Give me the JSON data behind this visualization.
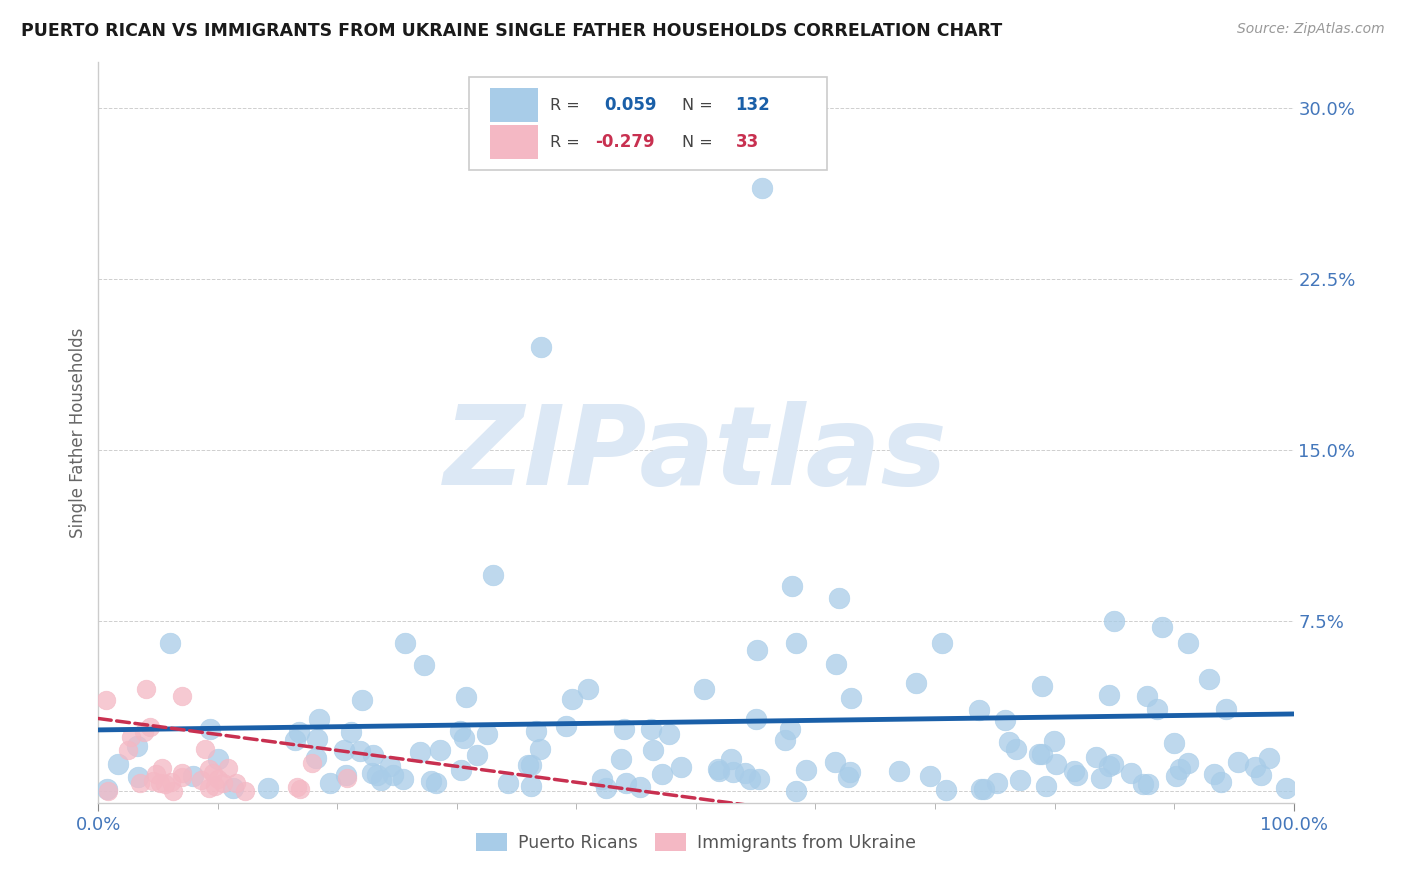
{
  "title": "PUERTO RICAN VS IMMIGRANTS FROM UKRAINE SINGLE FATHER HOUSEHOLDS CORRELATION CHART",
  "source": "Source: ZipAtlas.com",
  "ylabel": "Single Father Households",
  "xlim": [
    0.0,
    1.0
  ],
  "ylim": [
    -0.005,
    0.32
  ],
  "yticks": [
    0.0,
    0.075,
    0.15,
    0.225,
    0.3
  ],
  "ytick_labels": [
    "",
    "7.5%",
    "15.0%",
    "22.5%",
    "30.0%"
  ],
  "xtick_labels": [
    "0.0%",
    "100.0%"
  ],
  "blue_R": 0.059,
  "blue_N": 132,
  "pink_R": -0.279,
  "pink_N": 33,
  "blue_color": "#a8cce8",
  "pink_color": "#f4b8c4",
  "blue_line_color": "#1a5fa8",
  "pink_line_color": "#c83050",
  "watermark": "ZIPatlas",
  "watermark_color": "#dce8f5",
  "background_color": "#ffffff",
  "grid_color": "#bbbbbb",
  "title_color": "#1a1a1a",
  "axis_label_color": "#4477bb",
  "legend_border_color": "#cccccc"
}
